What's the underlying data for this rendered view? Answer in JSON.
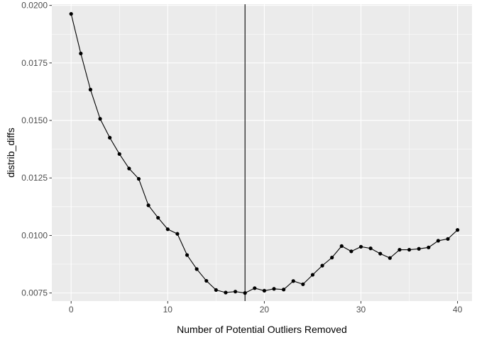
{
  "chart_data": {
    "type": "line",
    "title": "",
    "xlabel": "Number of Potential Outliers Removed",
    "ylabel": "distrib_diffs",
    "xlim": [
      -2,
      41.5
    ],
    "ylim": [
      0.00715,
      0.02005
    ],
    "x_ticks": [
      0,
      10,
      20,
      30,
      40
    ],
    "x_tick_labels": [
      "0",
      "10",
      "20",
      "30",
      "40"
    ],
    "y_ticks": [
      0.0075,
      0.01,
      0.0125,
      0.015,
      0.0175,
      0.02
    ],
    "y_tick_labels": [
      "0.0075",
      "0.0100",
      "0.0125",
      "0.0150",
      "0.0175",
      "0.0200"
    ],
    "grid": true,
    "panel_background": "#ebebeb",
    "grid_color": "#ffffff",
    "series_color": "#000000",
    "vline_x": 18,
    "series": [
      {
        "x": [
          0,
          1,
          2,
          3,
          4,
          5,
          6,
          7,
          8,
          9,
          10,
          11,
          12,
          13,
          14,
          15,
          16,
          17,
          18,
          19,
          20,
          21,
          22,
          23,
          24,
          25,
          26,
          27,
          28,
          29,
          30,
          31,
          32,
          33,
          34,
          35,
          36,
          37,
          38,
          39,
          40
        ],
        "values": [
          0.01963,
          0.01791,
          0.01634,
          0.01507,
          0.01425,
          0.01354,
          0.01291,
          0.01246,
          0.01131,
          0.01077,
          0.01027,
          0.01007,
          0.00915,
          0.00854,
          0.00803,
          0.00763,
          0.00752,
          0.00756,
          0.0075,
          0.00771,
          0.0076,
          0.00768,
          0.00765,
          0.00802,
          0.00788,
          0.00829,
          0.00869,
          0.00904,
          0.00954,
          0.00931,
          0.00951,
          0.00944,
          0.00921,
          0.00902,
          0.00938,
          0.00938,
          0.00942,
          0.00948,
          0.00977,
          0.00985,
          0.01024
        ]
      }
    ]
  }
}
